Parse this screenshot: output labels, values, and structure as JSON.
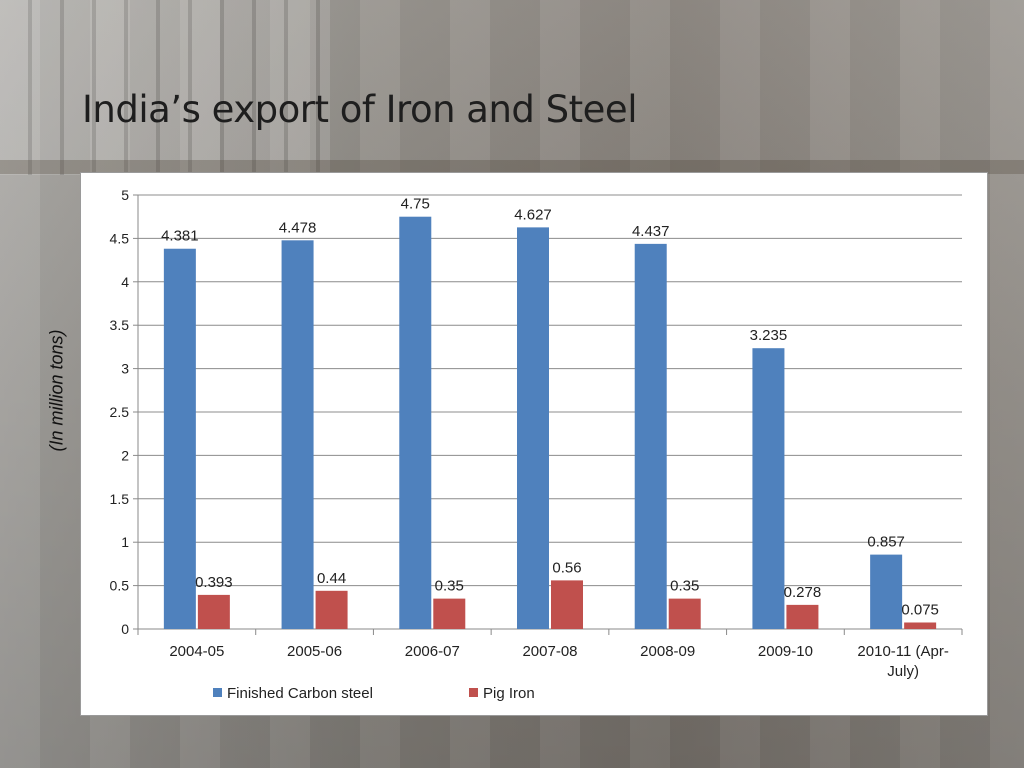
{
  "slide": {
    "title": "India’s export of Iron and Steel",
    "ylabel": "(In million tons)"
  },
  "chart_data": {
    "type": "bar",
    "title": "",
    "xlabel": "",
    "ylabel": "(In million tons)",
    "ylim": [
      0,
      5
    ],
    "yticks": [
      "0",
      "0.5",
      "1",
      "1.5",
      "2",
      "2.5",
      "3",
      "3.5",
      "4",
      "4.5",
      "5"
    ],
    "grid": true,
    "legend_position": "bottom",
    "categories": [
      "2004-05",
      "2005-06",
      "2006-07",
      "2007-08",
      "2008-09",
      "2009-10",
      "2010-11 (Apr-July)"
    ],
    "category_lines": [
      [
        "2004-05"
      ],
      [
        "2005-06"
      ],
      [
        "2006-07"
      ],
      [
        "2007-08"
      ],
      [
        "2008-09"
      ],
      [
        "2009-10"
      ],
      [
        "2010-11 (Apr-",
        "July)"
      ]
    ],
    "series": [
      {
        "name": "Finished Carbon steel",
        "color": "#4f81bd",
        "values": [
          4.381,
          4.478,
          4.75,
          4.627,
          4.437,
          3.235,
          0.857
        ],
        "labels": [
          "4.381",
          "4.478",
          "4.75",
          "4.627",
          "4.437",
          "3.235",
          "0.857"
        ]
      },
      {
        "name": "Pig Iron",
        "color": "#c0504d",
        "values": [
          0.393,
          0.44,
          0.35,
          0.56,
          0.35,
          0.278,
          0.075
        ],
        "labels": [
          "0.393",
          "0.44",
          "0.35",
          "0.56",
          "0.35",
          "0.278",
          "0.075"
        ]
      }
    ]
  }
}
